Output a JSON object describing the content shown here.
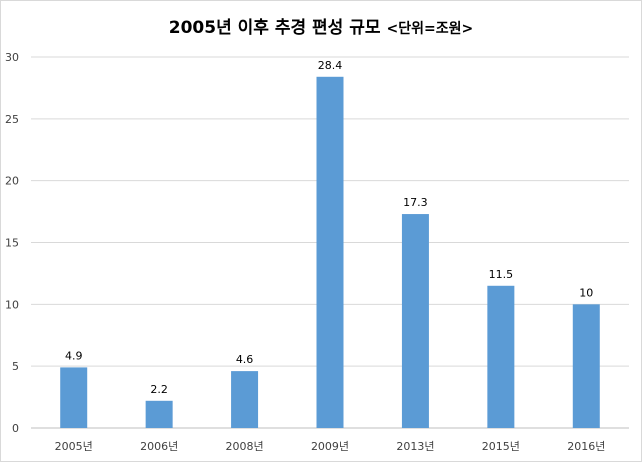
{
  "chart_data": {
    "type": "bar",
    "title": "2005년 이후 추경 편성 규모",
    "unit_note": "<단위=조원>",
    "categories": [
      "2005년",
      "2006년",
      "2008년",
      "2009년",
      "2013년",
      "2015년",
      "2016년"
    ],
    "values": [
      4.9,
      2.2,
      4.6,
      28.4,
      17.3,
      11.5,
      10
    ],
    "data_labels": [
      "4.9",
      "2.2",
      "4.6",
      "28.4",
      "17.3",
      "11.5",
      "10"
    ],
    "ylim": [
      0,
      30
    ],
    "yticks": [
      0,
      5,
      10,
      15,
      20,
      25,
      30
    ],
    "grid": true,
    "legend": "none",
    "bar_color": "#5b9bd5"
  }
}
